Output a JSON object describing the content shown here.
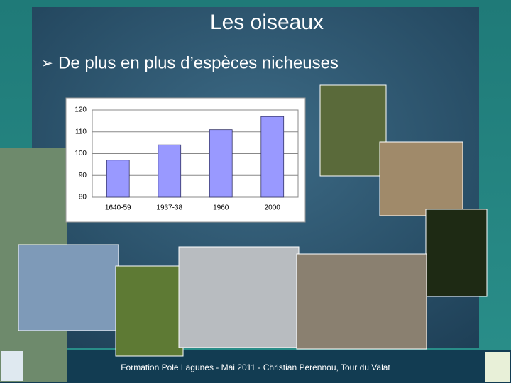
{
  "title": "Les oiseaux",
  "bullet": "De plus en plus d’espèces nicheuses",
  "footer": "Formation Pole Lagunes - Mai 2011  -  Christian Perennou, Tour du Valat",
  "chart_data": {
    "type": "bar",
    "categories": [
      "1640-59",
      "1937-38",
      "1960",
      "2000"
    ],
    "values": [
      97,
      104,
      111,
      117
    ],
    "color": "#9999ff",
    "ylim": [
      80,
      120
    ],
    "yticks": [
      80,
      90,
      100,
      110,
      120
    ],
    "grid": true
  }
}
